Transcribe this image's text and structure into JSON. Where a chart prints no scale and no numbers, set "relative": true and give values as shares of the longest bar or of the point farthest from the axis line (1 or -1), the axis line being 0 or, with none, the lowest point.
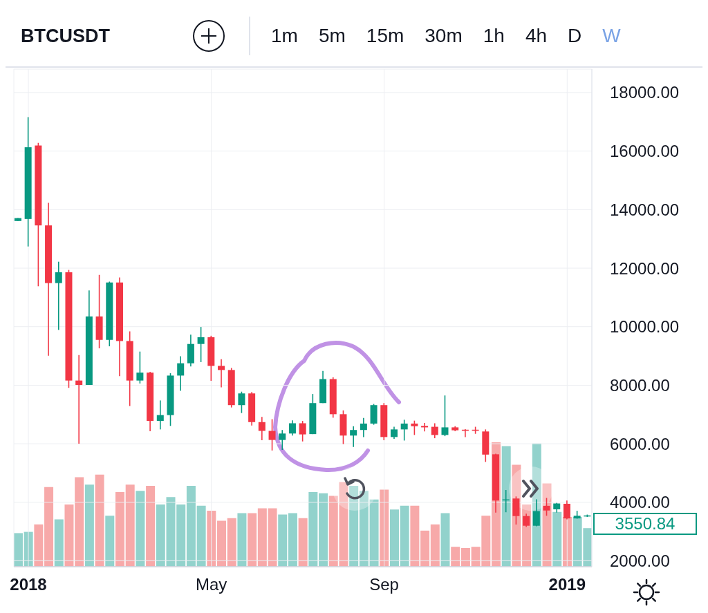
{
  "chart_data": [
    {
      "type": "candlestick",
      "title": "BTCUSDT",
      "x": [
        "2017-12-25",
        "2018-01-01",
        "2018-01-08",
        "2018-01-15",
        "2018-01-22",
        "2018-01-29",
        "2018-02-05",
        "2018-02-12",
        "2018-02-19",
        "2018-02-26",
        "2018-03-05",
        "2018-03-12",
        "2018-03-19",
        "2018-03-26",
        "2018-04-02",
        "2018-04-09",
        "2018-04-16",
        "2018-04-23",
        "2018-04-30",
        "2018-05-07",
        "2018-05-14",
        "2018-05-21",
        "2018-05-28",
        "2018-06-04",
        "2018-06-11",
        "2018-06-18",
        "2018-06-25",
        "2018-07-02",
        "2018-07-09",
        "2018-07-16",
        "2018-07-23",
        "2018-07-30",
        "2018-08-06",
        "2018-08-13",
        "2018-08-20",
        "2018-08-27",
        "2018-09-03",
        "2018-09-10",
        "2018-09-17",
        "2018-09-24",
        "2018-10-01",
        "2018-10-08",
        "2018-10-15",
        "2018-10-22",
        "2018-10-29",
        "2018-11-05",
        "2018-11-12",
        "2018-11-19",
        "2018-11-26",
        "2018-12-03",
        "2018-12-10",
        "2018-12-17",
        "2018-12-24",
        "2018-12-31",
        "2019-01-07",
        "2019-01-14",
        "2019-01-21"
      ],
      "ohlc": [
        [
          13610,
          13710,
          13610,
          13710
        ],
        [
          13680,
          17160,
          12740,
          16130
        ],
        [
          16190,
          16280,
          11380,
          13460
        ],
        [
          13460,
          14230,
          9010,
          11490
        ],
        [
          11490,
          12220,
          9890,
          11860
        ],
        [
          11860,
          11940,
          7910,
          8160
        ],
        [
          8160,
          9030,
          6000,
          8010
        ],
        [
          8010,
          11240,
          8010,
          10350
        ],
        [
          10350,
          11770,
          9260,
          9550
        ],
        [
          9550,
          11540,
          9330,
          11510
        ],
        [
          11510,
          11680,
          8310,
          9510
        ],
        [
          9510,
          9840,
          7290,
          8160
        ],
        [
          8160,
          9150,
          8060,
          8430
        ],
        [
          8430,
          8460,
          6430,
          6780
        ],
        [
          6780,
          7480,
          6490,
          6980
        ],
        [
          6980,
          8410,
          6610,
          8330
        ],
        [
          8330,
          8990,
          7810,
          8750
        ],
        [
          8750,
          9730,
          8640,
          9410
        ],
        [
          9410,
          9990,
          8790,
          9640
        ],
        [
          9640,
          9690,
          8150,
          8660
        ],
        [
          8660,
          8890,
          7930,
          8520
        ],
        [
          8520,
          8590,
          7240,
          7320
        ],
        [
          7320,
          7780,
          7050,
          7720
        ],
        [
          7720,
          7770,
          6620,
          6740
        ],
        [
          6740,
          6920,
          6120,
          6440
        ],
        [
          6440,
          6840,
          5770,
          6130
        ],
        [
          6130,
          6470,
          5790,
          6350
        ],
        [
          6350,
          6800,
          6280,
          6700
        ],
        [
          6700,
          6780,
          6080,
          6320
        ],
        [
          6330,
          7700,
          6330,
          7390
        ],
        [
          7390,
          8490,
          7390,
          8210
        ],
        [
          8210,
          8270,
          6890,
          7010
        ],
        [
          7010,
          7140,
          5990,
          6280
        ],
        [
          6280,
          6600,
          5890,
          6470
        ],
        [
          6470,
          6880,
          6230,
          6690
        ],
        [
          6690,
          7360,
          6650,
          7320
        ],
        [
          7320,
          7390,
          6120,
          6230
        ],
        [
          6230,
          6580,
          6170,
          6490
        ],
        [
          6490,
          6820,
          6110,
          6690
        ],
        [
          6690,
          6790,
          6300,
          6600
        ],
        [
          6610,
          6710,
          6420,
          6560
        ],
        [
          6580,
          6700,
          6190,
          6300
        ],
        [
          6300,
          7650,
          6260,
          6560
        ],
        [
          6560,
          6600,
          6430,
          6460
        ],
        [
          6480,
          6500,
          6230,
          6460
        ],
        [
          6480,
          6580,
          6340,
          6450
        ],
        [
          6420,
          6490,
          5380,
          5630
        ],
        [
          5640,
          5660,
          3650,
          4060
        ],
        [
          4080,
          4420,
          3660,
          4100
        ],
        [
          4130,
          4200,
          3240,
          3530
        ],
        [
          3530,
          3610,
          3160,
          3200
        ],
        [
          3200,
          4100,
          3180,
          3700
        ],
        [
          3880,
          4150,
          3540,
          3720
        ],
        [
          3760,
          3980,
          3650,
          3960
        ],
        [
          3950,
          4060,
          3420,
          3450
        ],
        [
          3450,
          3710,
          3440,
          3540
        ],
        [
          3530,
          3580,
          3500,
          3550.84
        ]
      ],
      "colors": [
        "#089981",
        "#089981",
        "#f23645",
        "#f23645",
        "#089981",
        "#f23645",
        "#f23645",
        "#089981",
        "#f23645",
        "#089981",
        "#f23645",
        "#f23645",
        "#089981",
        "#f23645",
        "#089981",
        "#089981",
        "#089981",
        "#089981",
        "#089981",
        "#f23645",
        "#f23645",
        "#f23645",
        "#089981",
        "#f23645",
        "#f23645",
        "#f23645",
        "#089981",
        "#089981",
        "#f23645",
        "#089981",
        "#089981",
        "#f23645",
        "#f23645",
        "#089981",
        "#089981",
        "#089981",
        "#f23645",
        "#089981",
        "#089981",
        "#f23645",
        "#f23645",
        "#f23645",
        "#089981",
        "#f23645",
        "#f23645",
        "#f23645",
        "#f23645",
        "#f23645",
        "#089981",
        "#f23645",
        "#f23645",
        "#089981",
        "#f23645",
        "#089981",
        "#f23645",
        "#089981",
        "#089981"
      ],
      "xlim": [
        "2017-12-22",
        "2019-01-24"
      ],
      "xticks": [
        {
          "value": "2018-01-01",
          "label": "2018"
        },
        {
          "value": "2018-05-07",
          "label": "May"
        },
        {
          "value": "2018-09-03",
          "label": "Sep"
        },
        {
          "value": "2019-01-07",
          "label": "2019"
        }
      ],
      "ylim": [
        1800,
        18800
      ],
      "yticks": [
        {
          "value": 2000,
          "label": "2000.00"
        },
        {
          "value": 4000,
          "label": "4000.00"
        },
        {
          "value": 6000,
          "label": "6000.00"
        },
        {
          "value": 8000,
          "label": "8000.00"
        },
        {
          "value": 10000,
          "label": "10000.00"
        },
        {
          "value": 12000,
          "label": "12000.00"
        },
        {
          "value": 14000,
          "label": "14000.00"
        },
        {
          "value": 16000,
          "label": "16000.00"
        },
        {
          "value": 18000,
          "label": "18000.00"
        }
      ],
      "grid": true,
      "annotations": [
        "1m",
        "5m",
        "15m",
        "30m",
        "1h",
        "4h",
        "D",
        "W",
        {
          "text": "3550.84",
          "x": "2019-01-21",
          "y": 3550.84
        }
      ]
    },
    {
      "type": "bar",
      "relative": true,
      "x": [
        "2017-12-25",
        "2018-01-01",
        "2018-01-08",
        "2018-01-15",
        "2018-01-22",
        "2018-01-29",
        "2018-02-05",
        "2018-02-12",
        "2018-02-19",
        "2018-02-26",
        "2018-03-05",
        "2018-03-12",
        "2018-03-19",
        "2018-03-26",
        "2018-04-02",
        "2018-04-09",
        "2018-04-16",
        "2018-04-23",
        "2018-04-30",
        "2018-05-07",
        "2018-05-14",
        "2018-05-21",
        "2018-05-28",
        "2018-06-04",
        "2018-06-11",
        "2018-06-18",
        "2018-06-25",
        "2018-07-02",
        "2018-07-09",
        "2018-07-16",
        "2018-07-23",
        "2018-07-30",
        "2018-08-06",
        "2018-08-13",
        "2018-08-20",
        "2018-08-27",
        "2018-09-03",
        "2018-09-10",
        "2018-09-17",
        "2018-09-24",
        "2018-10-01",
        "2018-10-08",
        "2018-10-15",
        "2018-10-22",
        "2018-10-29",
        "2018-11-05",
        "2018-11-12",
        "2018-11-19",
        "2018-11-26",
        "2018-12-03",
        "2018-12-10",
        "2018-12-17",
        "2018-12-24",
        "2018-12-31",
        "2019-01-07",
        "2019-01-14",
        "2019-01-21"
      ],
      "xlim": [
        "2017-12-22",
        "2019-01-24"
      ],
      "values": [
        0.27,
        0.28,
        0.34,
        0.64,
        0.38,
        0.5,
        0.72,
        0.66,
        0.74,
        0.41,
        0.6,
        0.66,
        0.61,
        0.65,
        0.5,
        0.56,
        0.5,
        0.65,
        0.49,
        0.45,
        0.37,
        0.39,
        0.43,
        0.43,
        0.47,
        0.47,
        0.42,
        0.43,
        0.39,
        0.6,
        0.59,
        0.57,
        0.68,
        0.65,
        0.61,
        0.54,
        0.62,
        0.46,
        0.49,
        0.49,
        0.29,
        0.34,
        0.43,
        0.16,
        0.15,
        0.16,
        0.41,
        1,
        0.97,
        0.82,
        0.5,
        0.99,
        0.67,
        0.44,
        0.4,
        0.4,
        0.31
      ],
      "colors": [
        "#92d2cc",
        "#92d2cc",
        "#f7a9a9",
        "#f7a9a9",
        "#92d2cc",
        "#f7a9a9",
        "#f7a9a9",
        "#92d2cc",
        "#f7a9a9",
        "#92d2cc",
        "#f7a9a9",
        "#f7a9a9",
        "#92d2cc",
        "#f7a9a9",
        "#92d2cc",
        "#92d2cc",
        "#92d2cc",
        "#92d2cc",
        "#92d2cc",
        "#f7a9a9",
        "#f7a9a9",
        "#f7a9a9",
        "#92d2cc",
        "#f7a9a9",
        "#f7a9a9",
        "#f7a9a9",
        "#92d2cc",
        "#92d2cc",
        "#f7a9a9",
        "#92d2cc",
        "#92d2cc",
        "#f7a9a9",
        "#f7a9a9",
        "#92d2cc",
        "#92d2cc",
        "#92d2cc",
        "#f7a9a9",
        "#92d2cc",
        "#92d2cc",
        "#f7a9a9",
        "#f7a9a9",
        "#f7a9a9",
        "#92d2cc",
        "#f7a9a9",
        "#f7a9a9",
        "#f7a9a9",
        "#f7a9a9",
        "#f7a9a9",
        "#92d2cc",
        "#f7a9a9",
        "#f7a9a9",
        "#92d2cc",
        "#f7a9a9",
        "#92d2cc",
        "#f7a9a9",
        "#92d2cc",
        "#92d2cc"
      ]
    }
  ]
}
